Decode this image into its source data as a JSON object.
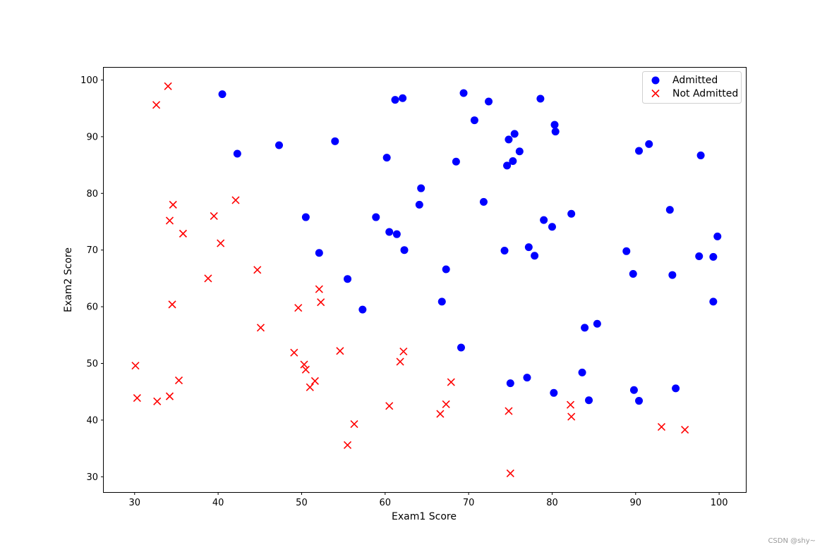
{
  "chart_data": {
    "type": "scatter",
    "title": "",
    "xlabel": "Exam1 Score",
    "ylabel": "Exam2 Score",
    "xlim": [
      26.3,
      103.2
    ],
    "ylim": [
      27.3,
      102.3
    ],
    "xticks": [
      30,
      40,
      50,
      60,
      70,
      80,
      90,
      100
    ],
    "yticks": [
      30,
      40,
      50,
      60,
      70,
      80,
      90,
      100
    ],
    "grid": false,
    "legend_position": "top-right",
    "series": [
      {
        "name": "Admitted",
        "marker": "circle",
        "color": "#0000ff",
        "points": [
          [
            40.5,
            97.5
          ],
          [
            42.3,
            87.0
          ],
          [
            47.3,
            88.5
          ],
          [
            50.5,
            75.8
          ],
          [
            52.1,
            69.5
          ],
          [
            54.0,
            89.2
          ],
          [
            55.5,
            64.9
          ],
          [
            57.3,
            59.5
          ],
          [
            58.9,
            75.8
          ],
          [
            60.2,
            86.3
          ],
          [
            60.5,
            73.2
          ],
          [
            61.2,
            96.5
          ],
          [
            61.4,
            72.8
          ],
          [
            62.1,
            96.8
          ],
          [
            62.3,
            70.0
          ],
          [
            64.1,
            78.0
          ],
          [
            64.3,
            80.9
          ],
          [
            66.8,
            60.9
          ],
          [
            67.3,
            66.6
          ],
          [
            68.5,
            85.6
          ],
          [
            69.1,
            52.8
          ],
          [
            69.4,
            97.7
          ],
          [
            70.7,
            92.9
          ],
          [
            71.8,
            78.5
          ],
          [
            72.4,
            96.2
          ],
          [
            74.3,
            69.9
          ],
          [
            74.6,
            84.9
          ],
          [
            74.8,
            89.5
          ],
          [
            75.0,
            46.5
          ],
          [
            75.3,
            85.7
          ],
          [
            75.5,
            90.5
          ],
          [
            76.1,
            87.4
          ],
          [
            77.0,
            47.5
          ],
          [
            77.2,
            70.5
          ],
          [
            77.9,
            69.0
          ],
          [
            78.6,
            96.7
          ],
          [
            79.0,
            75.3
          ],
          [
            80.0,
            74.1
          ],
          [
            80.2,
            44.8
          ],
          [
            80.3,
            92.1
          ],
          [
            80.4,
            90.9
          ],
          [
            82.3,
            76.4
          ],
          [
            83.6,
            48.4
          ],
          [
            83.9,
            56.3
          ],
          [
            84.4,
            43.5
          ],
          [
            85.4,
            57.0
          ],
          [
            88.9,
            69.8
          ],
          [
            89.7,
            65.8
          ],
          [
            89.8,
            45.3
          ],
          [
            90.4,
            87.5
          ],
          [
            90.4,
            43.4
          ],
          [
            91.6,
            88.7
          ],
          [
            94.1,
            77.1
          ],
          [
            94.4,
            65.6
          ],
          [
            94.8,
            45.6
          ],
          [
            97.6,
            68.9
          ],
          [
            97.8,
            86.7
          ],
          [
            99.3,
            68.8
          ],
          [
            99.3,
            60.9
          ],
          [
            99.8,
            72.4
          ]
        ]
      },
      {
        "name": "Not Admitted",
        "marker": "x",
        "color": "#ff0000",
        "points": [
          [
            30.1,
            49.6
          ],
          [
            30.3,
            43.9
          ],
          [
            32.6,
            95.6
          ],
          [
            32.7,
            43.3
          ],
          [
            34.0,
            98.9
          ],
          [
            34.2,
            75.2
          ],
          [
            34.2,
            44.2
          ],
          [
            34.5,
            60.4
          ],
          [
            34.6,
            78.0
          ],
          [
            35.3,
            47.0
          ],
          [
            35.8,
            72.9
          ],
          [
            38.8,
            65.0
          ],
          [
            39.5,
            76.0
          ],
          [
            40.3,
            71.2
          ],
          [
            42.1,
            78.8
          ],
          [
            44.7,
            66.5
          ],
          [
            45.1,
            56.3
          ],
          [
            49.1,
            51.9
          ],
          [
            49.6,
            59.8
          ],
          [
            50.3,
            49.8
          ],
          [
            50.5,
            48.9
          ],
          [
            51.0,
            45.8
          ],
          [
            51.6,
            46.9
          ],
          [
            52.1,
            63.1
          ],
          [
            52.3,
            60.8
          ],
          [
            54.6,
            52.2
          ],
          [
            55.5,
            35.6
          ],
          [
            56.3,
            39.3
          ],
          [
            60.5,
            42.5
          ],
          [
            61.8,
            50.3
          ],
          [
            62.2,
            52.1
          ],
          [
            66.6,
            41.1
          ],
          [
            67.3,
            42.8
          ],
          [
            67.9,
            46.7
          ],
          [
            74.8,
            41.6
          ],
          [
            75.0,
            30.6
          ],
          [
            82.2,
            42.7
          ],
          [
            82.3,
            40.6
          ],
          [
            93.1,
            38.8
          ],
          [
            95.9,
            38.3
          ]
        ]
      }
    ]
  },
  "watermark": "CSDN @shy~"
}
